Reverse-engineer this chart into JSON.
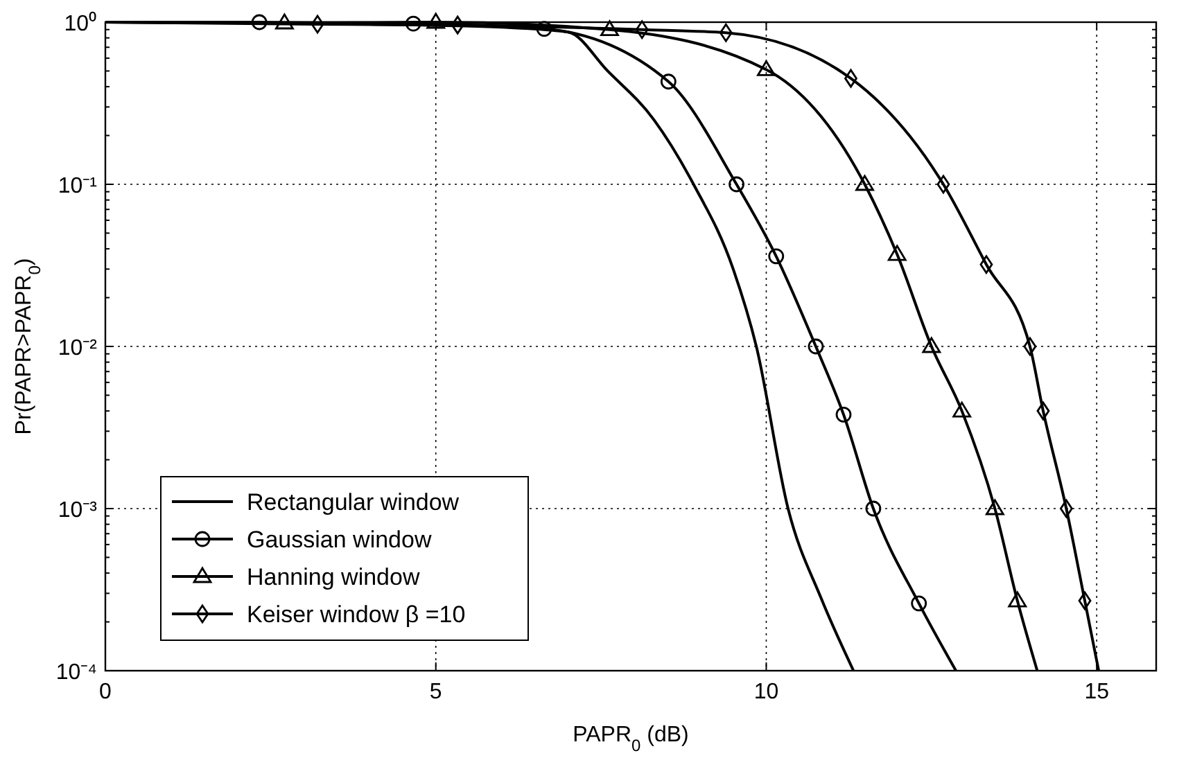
{
  "chart_data": {
    "type": "line",
    "xlabel": "PAPR$_{0}$ (dB)",
    "ylabel": "Pr(PAPR>PAPR$_{0}$)",
    "xlim": [
      0,
      15.9
    ],
    "xticks": [
      0,
      5,
      10,
      15
    ],
    "ylim": [
      0.0001,
      1
    ],
    "log": "y",
    "yticks": [
      {
        "value": 0.0001,
        "label": "10⁻⁴"
      },
      {
        "value": 0.0002,
        "label": null
      },
      {
        "value": 0.0003,
        "label": null
      },
      {
        "value": 0.0004,
        "label": null
      },
      {
        "value": 0.0005,
        "label": null
      },
      {
        "value": 0.0006,
        "label": null
      },
      {
        "value": 0.0007,
        "label": null
      },
      {
        "value": 0.0008,
        "label": null
      },
      {
        "value": 0.0009,
        "label": null
      },
      {
        "value": 0.001,
        "label": "10⁻³"
      },
      {
        "value": 0.002,
        "label": null
      },
      {
        "value": 0.003,
        "label": null
      },
      {
        "value": 0.004,
        "label": null
      },
      {
        "value": 0.005,
        "label": null
      },
      {
        "value": 0.006,
        "label": null
      },
      {
        "value": 0.007,
        "label": null
      },
      {
        "value": 0.008,
        "label": null
      },
      {
        "value": 0.009,
        "label": null
      },
      {
        "value": 0.01,
        "label": "10⁻²"
      },
      {
        "value": 0.02,
        "label": null
      },
      {
        "value": 0.03,
        "label": null
      },
      {
        "value": 0.04,
        "label": null
      },
      {
        "value": 0.05,
        "label": null
      },
      {
        "value": 0.06,
        "label": null
      },
      {
        "value": 0.07,
        "label": null
      },
      {
        "value": 0.08,
        "label": null
      },
      {
        "value": 0.09,
        "label": null
      },
      {
        "value": 0.1,
        "label": "10⁻¹"
      },
      {
        "value": 0.2,
        "label": null
      },
      {
        "value": 0.3,
        "label": null
      },
      {
        "value": 0.4,
        "label": null
      },
      {
        "value": 0.5,
        "label": null
      },
      {
        "value": 0.6,
        "label": null
      },
      {
        "value": 0.7,
        "label": null
      },
      {
        "value": 0.8,
        "label": null
      },
      {
        "value": 0.9,
        "label": null
      },
      {
        "value": 1,
        "label": "10⁰"
      }
    ],
    "grid": true,
    "legend": "bottom left",
    "line_style": "solid",
    "series": [
      {
        "name": "Rectangular window",
        "color": "#000000",
        "x": [
          0,
          2,
          4,
          6,
          7,
          7.6,
          8.3,
          8.9,
          9.5,
          9.85,
          10.33,
          10.83,
          11.32
        ],
        "values": [
          1,
          0.99,
          0.97,
          0.93,
          0.87,
          0.5,
          0.25,
          0.1,
          0.03,
          0.01,
          0.001,
          0.00028,
          0.0001
        ]
      },
      {
        "name": "Gaussian window",
        "color": "#000000",
        "x": [
          0,
          2.33,
          4.66,
          6.64,
          8.52,
          9.55,
          10.15,
          10.75,
          11.17,
          11.62,
          12.31,
          12.87
        ],
        "values": [
          1,
          1,
          0.98,
          0.91,
          0.43,
          0.1,
          0.036,
          0.01,
          0.0038,
          0.001,
          0.00026,
          0.0001
        ]
      },
      {
        "type": "scatter",
        "color": "#000000",
        "marker": "circle",
        "x": [
          2.33,
          4.66,
          6.64,
          8.52,
          9.55,
          10.15,
          10.75,
          11.17,
          11.62,
          12.31
        ],
        "values": [
          1,
          0.98,
          0.91,
          0.43,
          0.1,
          0.036,
          0.01,
          0.0038,
          0.001,
          0.00026
        ]
      },
      {
        "name": "Hanning window",
        "color": "#000000",
        "x": [
          0,
          2.71,
          5,
          7.63,
          10,
          11.49,
          11.98,
          12.5,
          12.96,
          13.46,
          13.8,
          14.1
        ],
        "values": [
          1,
          0.99,
          1,
          0.9,
          0.51,
          0.1,
          0.037,
          0.01,
          0.004,
          0.001,
          0.00027,
          0.0001
        ]
      },
      {
        "type": "scatter",
        "color": "#000000",
        "marker": "triangle",
        "x": [
          2.71,
          5,
          7.63,
          10,
          11.49,
          11.98,
          12.5,
          12.96,
          13.46,
          13.8
        ],
        "values": [
          0.99,
          1,
          0.9,
          0.51,
          0.1,
          0.037,
          0.01,
          0.004,
          0.001,
          0.00027
        ]
      },
      {
        "name": "Keiser window β =10",
        "color": "#000000",
        "x": [
          0,
          3.21,
          5.33,
          8.12,
          9.39,
          11.28,
          12.68,
          13.33,
          13.99,
          14.19,
          14.54,
          14.82,
          15.03
        ],
        "values": [
          1,
          0.97,
          0.96,
          0.9,
          0.86,
          0.45,
          0.1,
          0.032,
          0.01,
          0.004,
          0.001,
          0.00027,
          0.0001
        ]
      },
      {
        "type": "scatter",
        "color": "#000000",
        "marker": "diamond",
        "x": [
          3.21,
          5.33,
          8.12,
          9.39,
          11.28,
          12.68,
          13.33,
          13.99,
          14.19,
          14.54,
          14.82
        ],
        "values": [
          0.97,
          0.96,
          0.9,
          0.86,
          0.45,
          0.1,
          0.032,
          0.01,
          0.004,
          0.001,
          0.00027
        ]
      }
    ]
  }
}
